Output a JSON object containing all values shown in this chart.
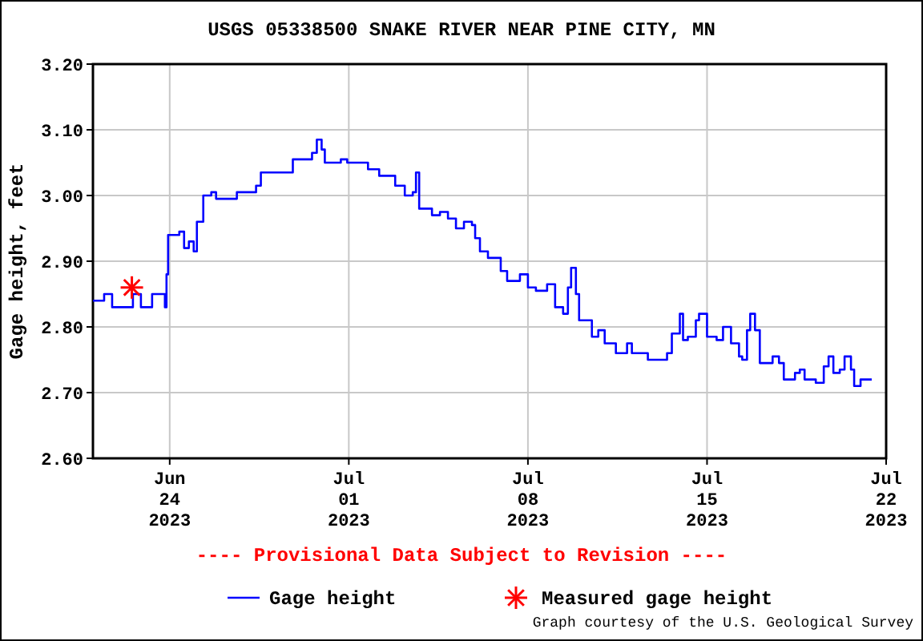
{
  "chart_data": {
    "type": "step",
    "title": "USGS 05338500 SNAKE RIVER NEAR PINE CITY, MN",
    "ylabel": "Gage height, feet",
    "annotations": [
      "---- Provisional Data Subject to Revision ----",
      "Graph courtesy of the U.S. Geological Survey"
    ],
    "xlim": [
      "2023-06-21",
      "2023-07-22"
    ],
    "xticks": [
      {
        "value": "2023-06-24",
        "label": "Jun\n24\n2023"
      },
      {
        "value": "2023-07-01",
        "label": "Jul\n01\n2023"
      },
      {
        "value": "2023-07-08",
        "label": "Jul\n08\n2023"
      },
      {
        "value": "2023-07-15",
        "label": "Jul\n15\n2023"
      },
      {
        "value": "2023-07-22",
        "label": "Jul\n22\n2023"
      }
    ],
    "ylim": [
      2.6,
      3.2
    ],
    "yticks": [
      {
        "value": 2.6,
        "label": "2.60"
      },
      {
        "value": 2.7,
        "label": "2.70"
      },
      {
        "value": 2.8,
        "label": "2.80"
      },
      {
        "value": 2.9,
        "label": "2.90"
      },
      {
        "value": 3.0,
        "label": "3.00"
      },
      {
        "value": 3.1,
        "label": "3.10"
      },
      {
        "value": 3.2,
        "label": "3.20"
      }
    ],
    "grid": true,
    "legend": "bottom",
    "line_style": "solid",
    "series": [
      {
        "name": "Gage height",
        "color": "#0000ff",
        "x": [
          "2023-06-21T00:00",
          "2023-06-21T10:30",
          "2023-06-21T18:00",
          "2023-06-22T12:00",
          "2023-06-22T13:30",
          "2023-06-22T21:00",
          "2023-06-23T07:30",
          "2023-06-23T19:30",
          "2023-06-23T21:00",
          "2023-06-23T22:30",
          "2023-06-24T09:00",
          "2023-06-24T13:30",
          "2023-06-24T18:00",
          "2023-06-24T22:30",
          "2023-06-25T01:30",
          "2023-06-25T07:30",
          "2023-06-25T15:00",
          "2023-06-25T19:30",
          "2023-06-26T07:30",
          "2023-06-26T15:00",
          "2023-06-27T01:30",
          "2023-06-27T09:00",
          "2023-06-27T13:30",
          "2023-06-28T12:00",
          "2023-06-28T19:30",
          "2023-06-29T09:00",
          "2023-06-29T13:30",
          "2023-06-29T18:00",
          "2023-06-29T22:30",
          "2023-06-30T01:30",
          "2023-06-30T09:00",
          "2023-06-30T16:30",
          "2023-06-30T22:30",
          "2023-07-01T13:30",
          "2023-07-01T18:00",
          "2023-07-02T04:30",
          "2023-07-02T13:30",
          "2023-07-02T19:30",
          "2023-07-03T04:30",
          "2023-07-03T12:00",
          "2023-07-03T15:00",
          "2023-07-03T18:00",
          "2023-07-04T06:00",
          "2023-07-04T13:30",
          "2023-07-04T21:00",
          "2023-07-05T04:30",
          "2023-07-05T12:00",
          "2023-07-05T19:30",
          "2023-07-05T22:30",
          "2023-07-06T03:00",
          "2023-07-06T10:30",
          "2023-07-06T18:00",
          "2023-07-06T22:30",
          "2023-07-07T04:30",
          "2023-07-07T16:30",
          "2023-07-08T00:00",
          "2023-07-08T07:30",
          "2023-07-08T18:00",
          "2023-07-09T01:30",
          "2023-07-09T09:00",
          "2023-07-09T13:30",
          "2023-07-09T16:30",
          "2023-07-09T21:00",
          "2023-07-10T00:00",
          "2023-07-10T07:30",
          "2023-07-10T12:00",
          "2023-07-10T18:00",
          "2023-07-11T00:00",
          "2023-07-11T10:30",
          "2023-07-11T21:00",
          "2023-07-12T01:30",
          "2023-07-12T09:00",
          "2023-07-12T16:30",
          "2023-07-13T04:30",
          "2023-07-13T10:30",
          "2023-07-13T15:00",
          "2023-07-13T22:30",
          "2023-07-14T01:30",
          "2023-07-14T06:00",
          "2023-07-14T13:30",
          "2023-07-14T16:30",
          "2023-07-15T00:00",
          "2023-07-15T09:00",
          "2023-07-15T15:00",
          "2023-07-15T22:30",
          "2023-07-16T06:00",
          "2023-07-16T09:00",
          "2023-07-16T13:30",
          "2023-07-16T16:30",
          "2023-07-16T21:00",
          "2023-07-17T01:30",
          "2023-07-17T09:00",
          "2023-07-17T13:30",
          "2023-07-17T19:30",
          "2023-07-18T00:00",
          "2023-07-18T10:30",
          "2023-07-18T15:00",
          "2023-07-18T19:30",
          "2023-07-19T06:00",
          "2023-07-19T13:30",
          "2023-07-19T18:00",
          "2023-07-19T22:30",
          "2023-07-20T04:30",
          "2023-07-20T09:00",
          "2023-07-20T15:00",
          "2023-07-20T18:00",
          "2023-07-21T00:00",
          "2023-07-21T10:30"
        ],
        "values": [
          2.84,
          2.85,
          2.83,
          2.83,
          2.85,
          2.83,
          2.85,
          2.83,
          2.88,
          2.94,
          2.945,
          2.92,
          2.93,
          2.915,
          2.96,
          3.0,
          3.005,
          2.995,
          2.995,
          3.005,
          3.005,
          3.015,
          3.035,
          3.035,
          3.055,
          3.055,
          3.065,
          3.085,
          3.07,
          3.05,
          3.05,
          3.055,
          3.05,
          3.05,
          3.04,
          3.03,
          3.03,
          3.015,
          3.0,
          3.005,
          3.035,
          2.98,
          2.97,
          2.975,
          2.965,
          2.95,
          2.96,
          2.955,
          2.935,
          2.915,
          2.905,
          2.905,
          2.885,
          2.87,
          2.88,
          2.86,
          2.855,
          2.865,
          2.83,
          2.82,
          2.86,
          2.89,
          2.85,
          2.81,
          2.81,
          2.785,
          2.795,
          2.775,
          2.76,
          2.775,
          2.76,
          2.76,
          2.75,
          2.75,
          2.76,
          2.79,
          2.82,
          2.78,
          2.785,
          2.81,
          2.82,
          2.785,
          2.78,
          2.8,
          2.775,
          2.755,
          2.75,
          2.795,
          2.82,
          2.795,
          2.745,
          2.745,
          2.755,
          2.745,
          2.72,
          2.73,
          2.735,
          2.72,
          2.715,
          2.74,
          2.755,
          2.73,
          2.735,
          2.755,
          2.735,
          2.71,
          2.72,
          2.72
        ]
      },
      {
        "name": "Measured gage height",
        "type": "scatter",
        "color": "#ff0000",
        "marker": "cross",
        "x": [
          "2023-06-22T12:30"
        ],
        "values": [
          2.86
        ]
      }
    ]
  }
}
